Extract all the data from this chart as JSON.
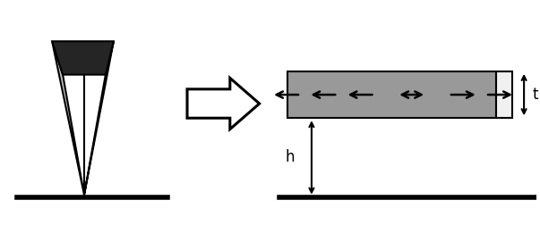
{
  "fig_width": 6.03,
  "fig_height": 2.52,
  "dpi": 100,
  "bg_color": "#ffffff",
  "left_face_color": "#c0c0c0",
  "right_face_color": "#888888",
  "top_face_color": "#252525",
  "rect_color": "#999999",
  "rect_strip_color": "#f0f0f0",
  "t_label": "t",
  "h_label": "h"
}
